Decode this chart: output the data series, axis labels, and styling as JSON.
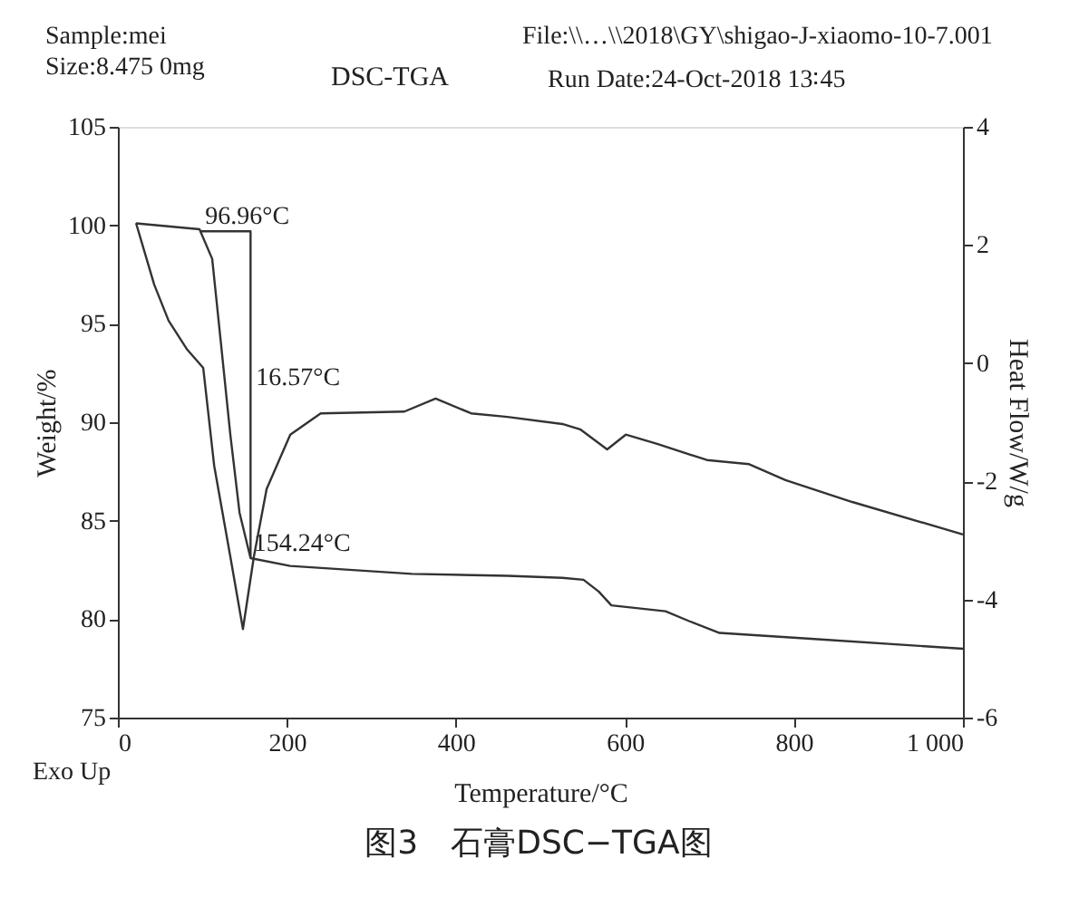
{
  "chart_data": {
    "type": "line",
    "title": "DSC-TGA",
    "xlabel": "Temperature/°C",
    "ylabel": "Weight/%",
    "y2label": "Heat Flow/W/g",
    "xlim": [
      0,
      1000
    ],
    "xticks": [
      0,
      200,
      400,
      600,
      800,
      {
        "value": 1000,
        "label": "1 000"
      }
    ],
    "ylim": [
      75,
      105
    ],
    "yticks": [
      75,
      80,
      85,
      90,
      95,
      100,
      105
    ],
    "y2lim": [
      -6,
      4
    ],
    "y2ticks": [
      -6,
      -4,
      -2,
      0,
      2,
      4
    ],
    "grid": false,
    "line_style": "solid",
    "series": [
      {
        "color": "#333333",
        "x": [
          21.5,
          96.6,
          111.6,
          122,
          133,
          144,
          157,
          204,
          348,
          461,
          526,
          551,
          569,
          584,
          648,
          676,
          712,
          820,
          1000
        ],
        "values": [
          100.1,
          99.8,
          98.3,
          94.0,
          89.4,
          85.4,
          83.1,
          82.7,
          82.3,
          82.2,
          82.1,
          82.0,
          81.4,
          80.7,
          80.4,
          79.9,
          79.3,
          79.0,
          78.5
        ]
      },
      {
        "color": "#333333",
        "axis": "y2",
        "x": [
          21.5,
          43,
          60,
          82,
          101,
          114,
          133,
          148,
          161,
          176,
          204,
          240,
          339,
          376,
          418,
          461,
          526,
          547,
          579,
          601,
          639,
          697,
          747,
          790,
          869,
          1000
        ],
        "values": [
          2.37,
          1.33,
          0.72,
          0.23,
          -0.08,
          -1.74,
          -3.27,
          -4.5,
          -3.27,
          -2.13,
          -1.21,
          -0.85,
          -0.82,
          -0.6,
          -0.85,
          -0.91,
          -1.03,
          -1.12,
          -1.46,
          -1.21,
          -1.37,
          -1.64,
          -1.71,
          -1.98,
          -2.35,
          -2.9
        ]
      },
      {
        "color": "#333333",
        "x": [
          96.96,
          157,
          157
        ],
        "values": [
          99.7,
          99.7,
          83.1
        ]
      }
    ],
    "annotations": [
      "Sample:mei",
      "Size:8.475 0mg",
      "File:\\\\…\\\\2018\\GY\\shigao-J-xiaomo-10-7.001",
      "Run Date:24-Oct-2018 13∶45",
      "Exo Up",
      "图3　石膏DSC−TGA图",
      {
        "text": "96.96°C",
        "x": 96.96,
        "y": 99.7
      },
      {
        "text": "16.57°C",
        "x": 157,
        "y": 91.5
      },
      {
        "text": "154.24°C",
        "x": 154.24,
        "y": 83.1
      }
    ]
  }
}
